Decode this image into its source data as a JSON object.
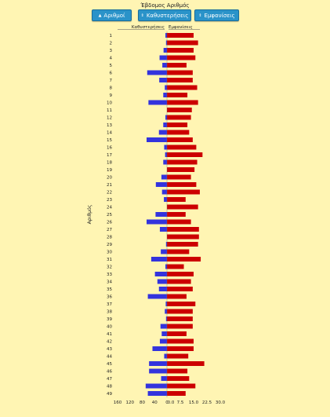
{
  "chart_data": {
    "type": "bar",
    "title": "Έβδομος Αριθμός",
    "sort_buttons": [
      {
        "arrow": "▲",
        "label": "Αριθμοί"
      },
      {
        "arrow": "⇕",
        "label": "Καθυστερήσεις"
      },
      {
        "arrow": "⇕",
        "label": "Εμφανίσεις"
      }
    ],
    "ylabel": "Αριθμός",
    "categories": [
      "1",
      "2",
      "3",
      "4",
      "5",
      "6",
      "7",
      "8",
      "9",
      "10",
      "11",
      "12",
      "13",
      "14",
      "15",
      "16",
      "17",
      "18",
      "19",
      "20",
      "21",
      "22",
      "23",
      "24",
      "25",
      "26",
      "27",
      "28",
      "29",
      "30",
      "31",
      "32",
      "33",
      "34",
      "35",
      "36",
      "37",
      "38",
      "39",
      "40",
      "41",
      "42",
      "43",
      "44",
      "45",
      "46",
      "47",
      "48",
      "49"
    ],
    "series": [
      {
        "name": "Καθυστερήσεις",
        "color": "#3333dd",
        "direction": "left",
        "values": [
          5,
          3,
          11,
          24,
          15,
          64,
          25,
          7,
          12,
          60,
          0,
          5,
          12,
          26,
          66,
          9,
          6,
          12,
          0,
          18,
          36,
          16,
          10,
          0,
          37,
          66,
          23,
          0,
          3,
          20,
          51,
          5,
          39,
          31,
          26,
          62,
          4,
          7,
          3,
          21,
          17,
          23,
          47,
          9,
          58,
          58,
          19,
          69,
          62
        ]
      },
      {
        "name": "Εμφανίσεις",
        "color": "#cc0000",
        "direction": "right",
        "values": [
          15,
          17.5,
          15,
          16,
          11,
          14.5,
          14.5,
          17,
          11.5,
          17.5,
          14,
          13.5,
          11.5,
          12.5,
          14.5,
          16.5,
          20,
          17,
          15.5,
          13.5,
          16.5,
          18.5,
          10.5,
          17.5,
          10.5,
          13.5,
          18,
          18,
          17.5,
          12.5,
          19,
          9.5,
          15,
          13.5,
          14.5,
          11,
          16,
          14.5,
          14.5,
          14.5,
          11,
          15,
          15,
          12,
          21,
          11.5,
          12.5,
          16,
          10.5
        ]
      }
    ],
    "left_axis": {
      "max": 160,
      "ticks": [
        "160",
        "120",
        "80",
        "40",
        "0"
      ]
    },
    "right_axis": {
      "max": 30,
      "ticks": [
        "0.0",
        "7.5",
        "15.0",
        "22.5",
        "30.0"
      ]
    },
    "grid": false,
    "legend": "top"
  }
}
